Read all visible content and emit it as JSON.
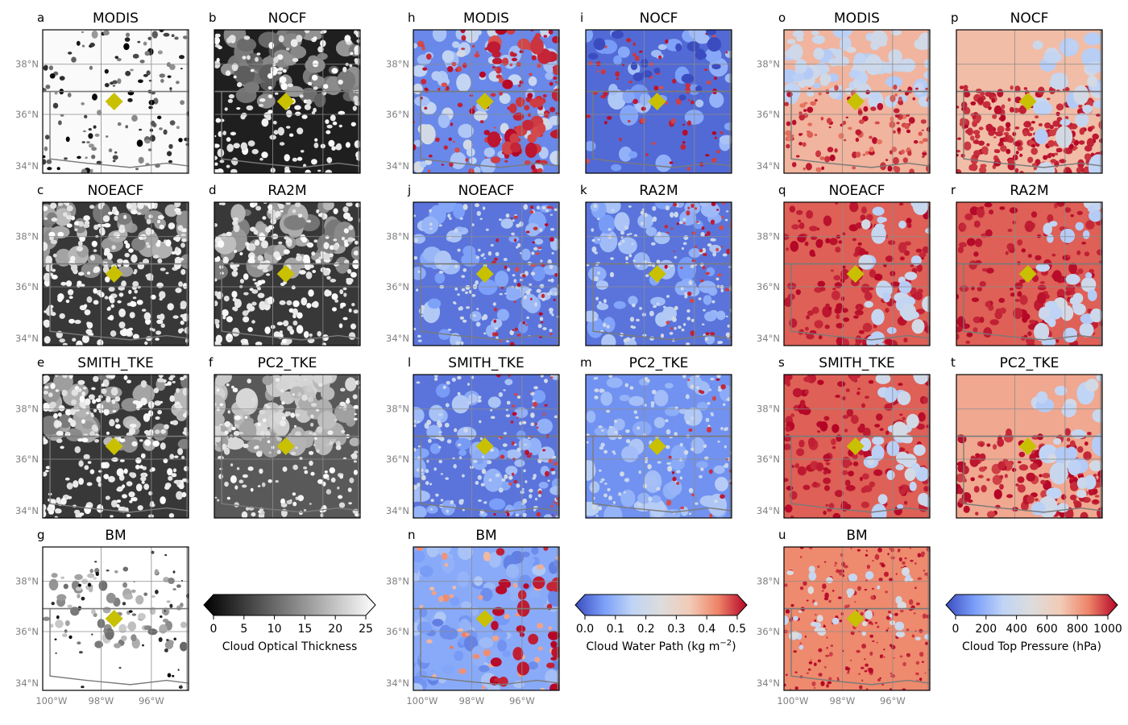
{
  "chart_data": {
    "type": "heatmap",
    "marker_color": "#c8c000",
    "columns": [
      {
        "variable": "Cloud Optical Thickness",
        "colormap": "gray",
        "colorbar": {
          "label": "Cloud Optical Thickness",
          "ticks": [
            "0",
            "5",
            "10",
            "15",
            "20",
            "25"
          ],
          "range": [
            0,
            25
          ],
          "stops": [
            "#000000",
            "#ffffff"
          ]
        },
        "panels": [
          {
            "letter": "a",
            "title": "MODIS",
            "style": "modis"
          },
          {
            "letter": "b",
            "title": "NOCF",
            "style": "nocf"
          },
          {
            "letter": "c",
            "title": "NOEACF",
            "style": "cumulus"
          },
          {
            "letter": "d",
            "title": "RA2M",
            "style": "cumulus"
          },
          {
            "letter": "e",
            "title": "SMITH_TKE",
            "style": "cumulus"
          },
          {
            "letter": "f",
            "title": "PC2_TKE",
            "style": "pc2"
          },
          {
            "letter": "g",
            "title": "BM",
            "style": "bm"
          }
        ]
      },
      {
        "variable": "Cloud Water Path",
        "colormap": "coolwarm",
        "colorbar": {
          "label_main": "Cloud Water Path (kg m",
          "label_sup": "−2",
          "label_end": ")",
          "ticks": [
            "0.0",
            "0.1",
            "0.2",
            "0.3",
            "0.4",
            "0.5"
          ],
          "range": [
            0,
            0.5
          ],
          "stops": [
            "#3b4cc0",
            "#7b9ff9",
            "#c0d4f5",
            "#dddcdc",
            "#f2cbb7",
            "#ee8468",
            "#b40426"
          ]
        },
        "panels": [
          {
            "letter": "h",
            "title": "MODIS",
            "style": "modis"
          },
          {
            "letter": "i",
            "title": "NOCF",
            "style": "nocf"
          },
          {
            "letter": "j",
            "title": "NOEACF",
            "style": "cumulus"
          },
          {
            "letter": "k",
            "title": "RA2M",
            "style": "cumulus"
          },
          {
            "letter": "l",
            "title": "SMITH_TKE",
            "style": "cumulus"
          },
          {
            "letter": "m",
            "title": "PC2_TKE",
            "style": "pc2"
          },
          {
            "letter": "n",
            "title": "BM",
            "style": "bm"
          }
        ]
      },
      {
        "variable": "Cloud Top Pressure",
        "colormap": "coolwarm",
        "colorbar": {
          "label": "Cloud Top Pressure (hPa)",
          "ticks": [
            "0",
            "200",
            "400",
            "600",
            "800",
            "1000"
          ],
          "range": [
            0,
            1000
          ],
          "stops": [
            "#3b4cc0",
            "#7b9ff9",
            "#c0d4f5",
            "#dddcdc",
            "#f2cbb7",
            "#ee8468",
            "#b40426"
          ]
        },
        "panels": [
          {
            "letter": "o",
            "title": "MODIS",
            "style": "modis"
          },
          {
            "letter": "p",
            "title": "NOCF",
            "style": "nocf"
          },
          {
            "letter": "q",
            "title": "NOEACF",
            "style": "cumulus"
          },
          {
            "letter": "r",
            "title": "RA2M",
            "style": "cumulus"
          },
          {
            "letter": "s",
            "title": "SMITH_TKE",
            "style": "cumulus"
          },
          {
            "letter": "t",
            "title": "PC2_TKE",
            "style": "pc2"
          },
          {
            "letter": "u",
            "title": "BM",
            "style": "bm"
          }
        ]
      }
    ],
    "lat_ticks": [
      "38°N",
      "36°N",
      "34°N"
    ],
    "lon_ticks": [
      "100°W",
      "98°W",
      "96°W"
    ]
  }
}
